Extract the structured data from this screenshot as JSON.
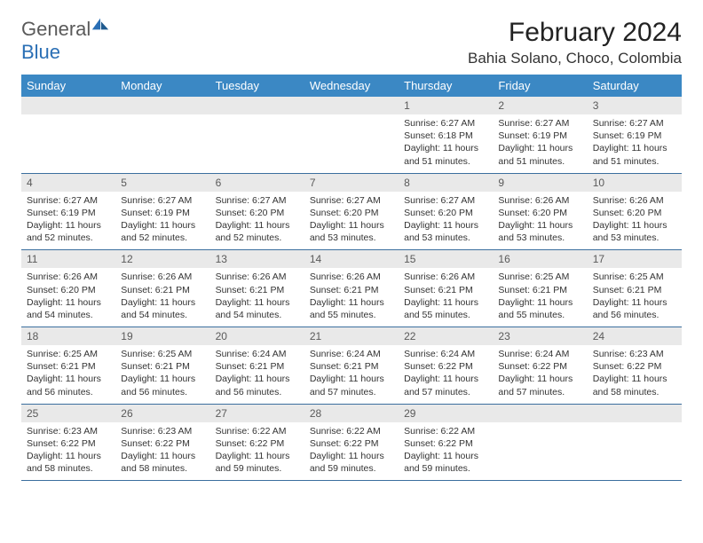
{
  "colors": {
    "header_bg": "#3b88c4",
    "header_text": "#ffffff",
    "daynum_bg": "#e9e9e9",
    "daynum_text": "#5a5a5a",
    "border": "#3b6f9e",
    "logo_gray": "#5a5a5a",
    "logo_blue": "#2a6fb5"
  },
  "logo": {
    "part1": "General",
    "part2": "Blue"
  },
  "title": "February 2024",
  "location": "Bahia Solano, Choco, Colombia",
  "day_headers": [
    "Sunday",
    "Monday",
    "Tuesday",
    "Wednesday",
    "Thursday",
    "Friday",
    "Saturday"
  ],
  "weeks": [
    [
      null,
      null,
      null,
      null,
      {
        "n": "1",
        "sr": "6:27 AM",
        "ss": "6:18 PM",
        "dl": "11 hours and 51 minutes."
      },
      {
        "n": "2",
        "sr": "6:27 AM",
        "ss": "6:19 PM",
        "dl": "11 hours and 51 minutes."
      },
      {
        "n": "3",
        "sr": "6:27 AM",
        "ss": "6:19 PM",
        "dl": "11 hours and 51 minutes."
      }
    ],
    [
      {
        "n": "4",
        "sr": "6:27 AM",
        "ss": "6:19 PM",
        "dl": "11 hours and 52 minutes."
      },
      {
        "n": "5",
        "sr": "6:27 AM",
        "ss": "6:19 PM",
        "dl": "11 hours and 52 minutes."
      },
      {
        "n": "6",
        "sr": "6:27 AM",
        "ss": "6:20 PM",
        "dl": "11 hours and 52 minutes."
      },
      {
        "n": "7",
        "sr": "6:27 AM",
        "ss": "6:20 PM",
        "dl": "11 hours and 53 minutes."
      },
      {
        "n": "8",
        "sr": "6:27 AM",
        "ss": "6:20 PM",
        "dl": "11 hours and 53 minutes."
      },
      {
        "n": "9",
        "sr": "6:26 AM",
        "ss": "6:20 PM",
        "dl": "11 hours and 53 minutes."
      },
      {
        "n": "10",
        "sr": "6:26 AM",
        "ss": "6:20 PM",
        "dl": "11 hours and 53 minutes."
      }
    ],
    [
      {
        "n": "11",
        "sr": "6:26 AM",
        "ss": "6:20 PM",
        "dl": "11 hours and 54 minutes."
      },
      {
        "n": "12",
        "sr": "6:26 AM",
        "ss": "6:21 PM",
        "dl": "11 hours and 54 minutes."
      },
      {
        "n": "13",
        "sr": "6:26 AM",
        "ss": "6:21 PM",
        "dl": "11 hours and 54 minutes."
      },
      {
        "n": "14",
        "sr": "6:26 AM",
        "ss": "6:21 PM",
        "dl": "11 hours and 55 minutes."
      },
      {
        "n": "15",
        "sr": "6:26 AM",
        "ss": "6:21 PM",
        "dl": "11 hours and 55 minutes."
      },
      {
        "n": "16",
        "sr": "6:25 AM",
        "ss": "6:21 PM",
        "dl": "11 hours and 55 minutes."
      },
      {
        "n": "17",
        "sr": "6:25 AM",
        "ss": "6:21 PM",
        "dl": "11 hours and 56 minutes."
      }
    ],
    [
      {
        "n": "18",
        "sr": "6:25 AM",
        "ss": "6:21 PM",
        "dl": "11 hours and 56 minutes."
      },
      {
        "n": "19",
        "sr": "6:25 AM",
        "ss": "6:21 PM",
        "dl": "11 hours and 56 minutes."
      },
      {
        "n": "20",
        "sr": "6:24 AM",
        "ss": "6:21 PM",
        "dl": "11 hours and 56 minutes."
      },
      {
        "n": "21",
        "sr": "6:24 AM",
        "ss": "6:21 PM",
        "dl": "11 hours and 57 minutes."
      },
      {
        "n": "22",
        "sr": "6:24 AM",
        "ss": "6:22 PM",
        "dl": "11 hours and 57 minutes."
      },
      {
        "n": "23",
        "sr": "6:24 AM",
        "ss": "6:22 PM",
        "dl": "11 hours and 57 minutes."
      },
      {
        "n": "24",
        "sr": "6:23 AM",
        "ss": "6:22 PM",
        "dl": "11 hours and 58 minutes."
      }
    ],
    [
      {
        "n": "25",
        "sr": "6:23 AM",
        "ss": "6:22 PM",
        "dl": "11 hours and 58 minutes."
      },
      {
        "n": "26",
        "sr": "6:23 AM",
        "ss": "6:22 PM",
        "dl": "11 hours and 58 minutes."
      },
      {
        "n": "27",
        "sr": "6:22 AM",
        "ss": "6:22 PM",
        "dl": "11 hours and 59 minutes."
      },
      {
        "n": "28",
        "sr": "6:22 AM",
        "ss": "6:22 PM",
        "dl": "11 hours and 59 minutes."
      },
      {
        "n": "29",
        "sr": "6:22 AM",
        "ss": "6:22 PM",
        "dl": "11 hours and 59 minutes."
      },
      null,
      null
    ]
  ],
  "labels": {
    "sunrise": "Sunrise:",
    "sunset": "Sunset:",
    "daylight": "Daylight:"
  }
}
